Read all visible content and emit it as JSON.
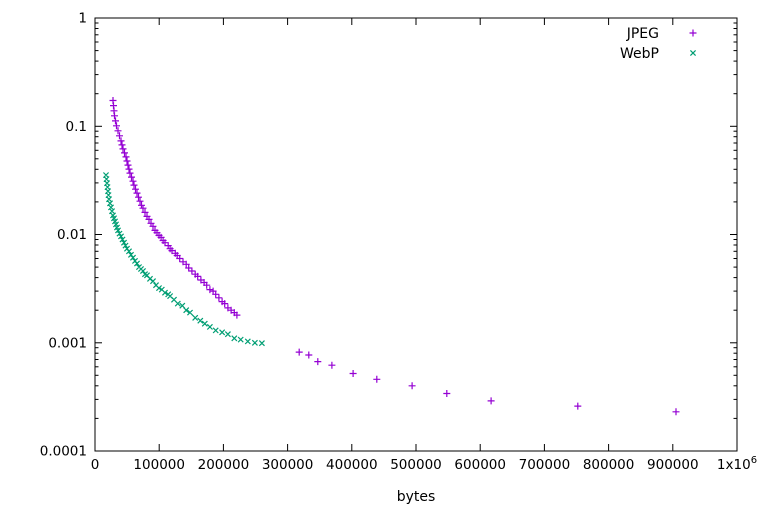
{
  "chart_data": {
    "type": "scatter",
    "title": "",
    "xlabel": "bytes",
    "ylabel": "",
    "grid": false,
    "legend": {
      "position": "top-right"
    },
    "x_axis": {
      "min": 0,
      "max": 1000000,
      "scale": "linear",
      "ticks": [
        {
          "value": 0,
          "label": "0"
        },
        {
          "value": 100000,
          "label": "100000"
        },
        {
          "value": 200000,
          "label": "200000"
        },
        {
          "value": 300000,
          "label": "300000"
        },
        {
          "value": 400000,
          "label": "400000"
        },
        {
          "value": 500000,
          "label": "500000"
        },
        {
          "value": 600000,
          "label": "600000"
        },
        {
          "value": 700000,
          "label": "700000"
        },
        {
          "value": 800000,
          "label": "800000"
        },
        {
          "value": 900000,
          "label": "900000"
        },
        {
          "value": 1000000,
          "label": "1x10^6"
        }
      ]
    },
    "y_axis": {
      "min": 0.0001,
      "max": 1,
      "scale": "log",
      "ticks": [
        {
          "value": 1,
          "label": "1"
        },
        {
          "value": 0.1,
          "label": "0.1"
        },
        {
          "value": 0.01,
          "label": "0.01"
        },
        {
          "value": 0.001,
          "label": "0.001"
        },
        {
          "value": 0.0001,
          "label": "0.0001"
        }
      ],
      "minor_ticks_per_decade": [
        2,
        3,
        4,
        5,
        6,
        7,
        8,
        9
      ]
    },
    "series": [
      {
        "name": "JPEG",
        "marker": "plus",
        "color": "#9400d3",
        "points": [
          [
            28000,
            0.173
          ],
          [
            28800,
            0.155
          ],
          [
            29600,
            0.139
          ],
          [
            30400,
            0.125
          ],
          [
            31900,
            0.112
          ],
          [
            33500,
            0.101
          ],
          [
            35800,
            0.0908
          ],
          [
            38200,
            0.0816
          ],
          [
            40500,
            0.0733
          ],
          [
            42100,
            0.0673
          ],
          [
            43600,
            0.0618
          ],
          [
            45900,
            0.0567
          ],
          [
            48300,
            0.0521
          ],
          [
            49800,
            0.0478
          ],
          [
            51400,
            0.0438
          ],
          [
            53000,
            0.0402
          ],
          [
            54500,
            0.0369
          ],
          [
            56900,
            0.0339
          ],
          [
            59200,
            0.0311
          ],
          [
            60700,
            0.0286
          ],
          [
            63100,
            0.0262
          ],
          [
            65400,
            0.0241
          ],
          [
            67800,
            0.0221
          ],
          [
            70100,
            0.0203
          ],
          [
            72400,
            0.0186
          ],
          [
            74800,
            0.0175
          ],
          [
            77900,
            0.016
          ],
          [
            81000,
            0.0147
          ],
          [
            84100,
            0.0138
          ],
          [
            87200,
            0.0127
          ],
          [
            90300,
            0.0119
          ],
          [
            93500,
            0.0109
          ],
          [
            96600,
            0.0104
          ],
          [
            99700,
            0.0098
          ],
          [
            103000,
            0.0094
          ],
          [
            106000,
            0.0088
          ],
          [
            109000,
            0.0084
          ],
          [
            114000,
            0.0079
          ],
          [
            117000,
            0.0074
          ],
          [
            120000,
            0.0071
          ],
          [
            125000,
            0.0067
          ],
          [
            128000,
            0.0064
          ],
          [
            132000,
            0.006
          ],
          [
            137000,
            0.0056
          ],
          [
            142000,
            0.0053
          ],
          [
            146000,
            0.0049
          ],
          [
            151000,
            0.0046
          ],
          [
            156000,
            0.0043
          ],
          [
            160000,
            0.0041
          ],
          [
            165000,
            0.0038
          ],
          [
            170000,
            0.0036
          ],
          [
            174000,
            0.0034
          ],
          [
            179000,
            0.0031
          ],
          [
            184000,
            0.003
          ],
          [
            188000,
            0.0028
          ],
          [
            193000,
            0.0026
          ],
          [
            198000,
            0.0024
          ],
          [
            202000,
            0.0023
          ],
          [
            207000,
            0.0021
          ],
          [
            212000,
            0.002
          ],
          [
            217000,
            0.0019
          ],
          [
            221000,
            0.0018
          ],
          [
            318000,
            0.00082
          ],
          [
            333000,
            0.00077
          ],
          [
            347000,
            0.00067
          ],
          [
            369000,
            0.00062
          ],
          [
            402000,
            0.00052
          ],
          [
            439000,
            0.00046
          ],
          [
            494000,
            0.0004
          ],
          [
            548000,
            0.00034
          ],
          [
            617000,
            0.00029
          ],
          [
            752000,
            0.00026
          ],
          [
            905000,
            0.00023
          ]
        ]
      },
      {
        "name": "WebP",
        "marker": "cross",
        "color": "#009e73",
        "points": [
          [
            17100,
            0.0354
          ],
          [
            17900,
            0.0325
          ],
          [
            18700,
            0.0298
          ],
          [
            19500,
            0.0274
          ],
          [
            20200,
            0.0251
          ],
          [
            21000,
            0.0231
          ],
          [
            21800,
            0.0212
          ],
          [
            23400,
            0.0194
          ],
          [
            24900,
            0.0178
          ],
          [
            26500,
            0.0164
          ],
          [
            28000,
            0.015
          ],
          [
            29600,
            0.0141
          ],
          [
            31200,
            0.0132
          ],
          [
            32700,
            0.0124
          ],
          [
            34300,
            0.0116
          ],
          [
            35800,
            0.0109
          ],
          [
            38200,
            0.0102
          ],
          [
            40500,
            0.0096
          ],
          [
            42800,
            0.009
          ],
          [
            45200,
            0.0084
          ],
          [
            47500,
            0.0079
          ],
          [
            49800,
            0.0074
          ],
          [
            53000,
            0.007
          ],
          [
            56100,
            0.0065
          ],
          [
            59200,
            0.0061
          ],
          [
            62300,
            0.0057
          ],
          [
            65400,
            0.0054
          ],
          [
            68500,
            0.005
          ],
          [
            71700,
            0.0048
          ],
          [
            74800,
            0.0046
          ],
          [
            77900,
            0.0043
          ],
          [
            81000,
            0.0042
          ],
          [
            85700,
            0.0039
          ],
          [
            90300,
            0.0037
          ],
          [
            95000,
            0.0034
          ],
          [
            99700,
            0.0032
          ],
          [
            104000,
            0.0031
          ],
          [
            109000,
            0.0029
          ],
          [
            114000,
            0.0028
          ],
          [
            117000,
            0.0027
          ],
          [
            123000,
            0.0025
          ],
          [
            129000,
            0.0023
          ],
          [
            136000,
            0.0022
          ],
          [
            142000,
            0.002
          ],
          [
            148000,
            0.0019
          ],
          [
            156000,
            0.0017
          ],
          [
            164000,
            0.0016
          ],
          [
            171000,
            0.0015
          ],
          [
            179000,
            0.0014
          ],
          [
            188000,
            0.0013
          ],
          [
            198000,
            0.00125
          ],
          [
            207000,
            0.0012
          ],
          [
            217000,
            0.0011
          ],
          [
            227000,
            0.00107
          ],
          [
            238000,
            0.00103
          ],
          [
            249000,
            0.001
          ],
          [
            260000,
            0.00099
          ]
        ]
      }
    ]
  }
}
